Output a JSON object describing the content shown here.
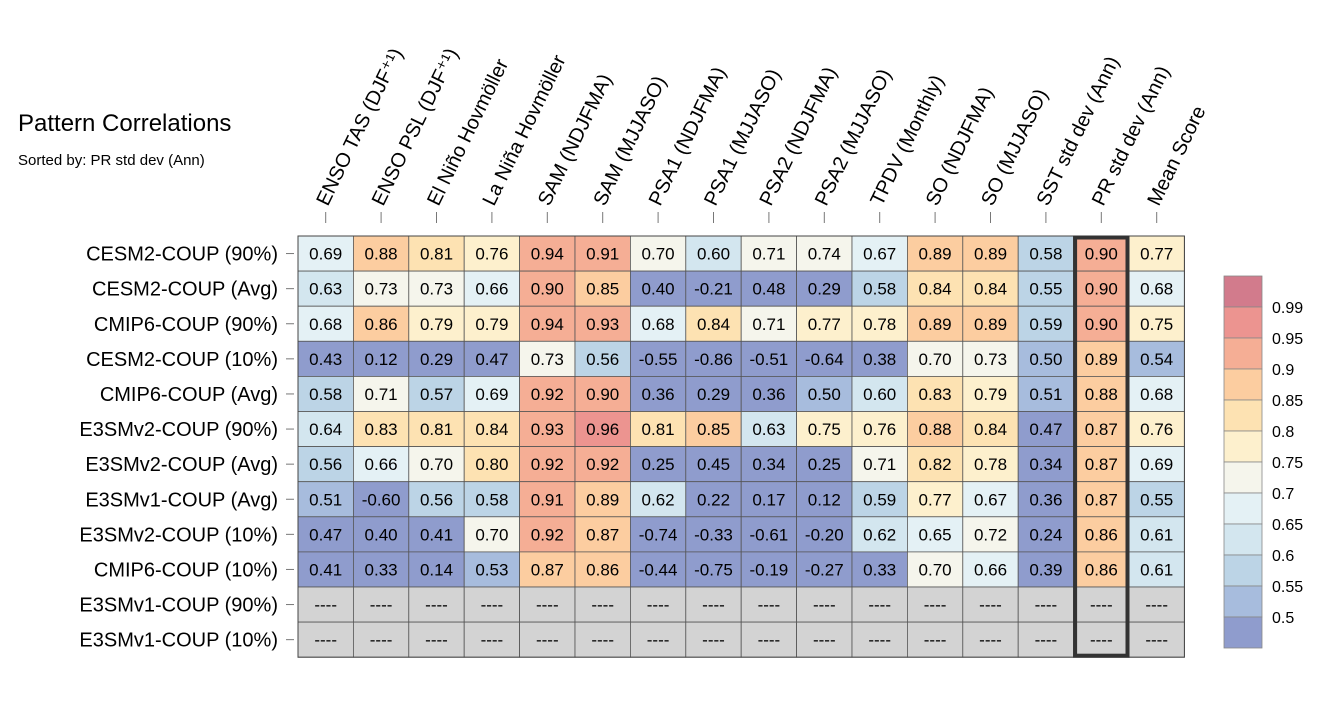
{
  "title": "Pattern Correlations",
  "subtitle": "Sorted by: PR std dev (Ann)",
  "colors": {
    "missing": "#d3d3d3",
    "bins": [
      "#8f9ccd",
      "#a7bcdd",
      "#bcd4e6",
      "#d3e6ef",
      "#e4f1f5",
      "#f5f5ec",
      "#fdf0cd",
      "#fde2b2",
      "#fccda0",
      "#f5ae95",
      "#ec9490",
      "#d27b8c"
    ],
    "highlight_border": "#333333"
  },
  "chart_data": {
    "type": "heatmap",
    "title": "Pattern Correlations",
    "subtitle": "Sorted by: PR std dev (Ann)",
    "columns": [
      "ENSO TAS (DJF⁺¹)",
      "ENSO PSL (DJF⁺¹)",
      "El Niño Hovmöller",
      "La Niña Hovmöller",
      "SAM (NDJFMA)",
      "SAM (MJJASO)",
      "PSA1 (NDJFMA)",
      "PSA1 (MJJASO)",
      "PSA2 (NDJFMA)",
      "PSA2 (MJJASO)",
      "TPDV (Monthly)",
      "SO (NDJFMA)",
      "SO (MJJASO)",
      "SST std dev (Ann)",
      "PR std dev (Ann)",
      "Mean Score"
    ],
    "rows": [
      "CESM2-COUP (90%)",
      "CESM2-COUP (Avg)",
      "CMIP6-COUP (90%)",
      "CESM2-COUP (10%)",
      "CMIP6-COUP (Avg)",
      "E3SMv2-COUP (90%)",
      "E3SMv2-COUP (Avg)",
      "E3SMv1-COUP (Avg)",
      "E3SMv2-COUP (10%)",
      "CMIP6-COUP (10%)",
      "E3SMv1-COUP (90%)",
      "E3SMv1-COUP (10%)"
    ],
    "values": [
      [
        "0.69",
        "0.88",
        "0.81",
        "0.76",
        "0.94",
        "0.91",
        "0.70",
        "0.60",
        "0.71",
        "0.74",
        "0.67",
        "0.89",
        "0.89",
        "0.58",
        "0.90",
        "0.77"
      ],
      [
        "0.63",
        "0.73",
        "0.73",
        "0.66",
        "0.90",
        "0.85",
        "0.40",
        "-0.21",
        "0.48",
        "0.29",
        "0.58",
        "0.84",
        "0.84",
        "0.55",
        "0.90",
        "0.68"
      ],
      [
        "0.68",
        "0.86",
        "0.79",
        "0.79",
        "0.94",
        "0.93",
        "0.68",
        "0.84",
        "0.71",
        "0.77",
        "0.78",
        "0.89",
        "0.89",
        "0.59",
        "0.90",
        "0.75"
      ],
      [
        "0.43",
        "0.12",
        "0.29",
        "0.47",
        "0.73",
        "0.56",
        "-0.55",
        "-0.86",
        "-0.51",
        "-0.64",
        "0.38",
        "0.70",
        "0.73",
        "0.50",
        "0.89",
        "0.54"
      ],
      [
        "0.58",
        "0.71",
        "0.57",
        "0.69",
        "0.92",
        "0.90",
        "0.36",
        "0.29",
        "0.36",
        "0.50",
        "0.60",
        "0.83",
        "0.79",
        "0.51",
        "0.88",
        "0.68"
      ],
      [
        "0.64",
        "0.83",
        "0.81",
        "0.84",
        "0.93",
        "0.96",
        "0.81",
        "0.85",
        "0.63",
        "0.75",
        "0.76",
        "0.88",
        "0.84",
        "0.47",
        "0.87",
        "0.76"
      ],
      [
        "0.56",
        "0.66",
        "0.70",
        "0.80",
        "0.92",
        "0.92",
        "0.25",
        "0.45",
        "0.34",
        "0.25",
        "0.71",
        "0.82",
        "0.78",
        "0.34",
        "0.87",
        "0.69"
      ],
      [
        "0.51",
        "-0.60",
        "0.56",
        "0.58",
        "0.91",
        "0.89",
        "0.62",
        "0.22",
        "0.17",
        "0.12",
        "0.59",
        "0.77",
        "0.67",
        "0.36",
        "0.87",
        "0.55"
      ],
      [
        "0.47",
        "0.40",
        "0.41",
        "0.70",
        "0.92",
        "0.87",
        "-0.74",
        "-0.33",
        "-0.61",
        "-0.20",
        "0.62",
        "0.65",
        "0.72",
        "0.24",
        "0.86",
        "0.61"
      ],
      [
        "0.41",
        "0.33",
        "0.14",
        "0.53",
        "0.87",
        "0.86",
        "-0.44",
        "-0.75",
        "-0.19",
        "-0.27",
        "0.33",
        "0.70",
        "0.66",
        "0.39",
        "0.86",
        "0.61"
      ],
      [
        "----",
        "----",
        "----",
        "----",
        "----",
        "----",
        "----",
        "----",
        "----",
        "----",
        "----",
        "----",
        "----",
        "----",
        "----",
        "----"
      ],
      [
        "----",
        "----",
        "----",
        "----",
        "----",
        "----",
        "----",
        "----",
        "----",
        "----",
        "----",
        "----",
        "----",
        "----",
        "----",
        "----"
      ]
    ],
    "highlight_column": "PR std dev (Ann)",
    "colorbar": {
      "labels": [
        "0.99",
        "0.95",
        "0.9",
        "0.85",
        "0.8",
        "0.75",
        "0.7",
        "0.65",
        "0.6",
        "0.55",
        "0.5"
      ],
      "thresholds": [
        0.5,
        0.55,
        0.6,
        0.65,
        0.7,
        0.75,
        0.8,
        0.85,
        0.9,
        0.95,
        0.99
      ]
    }
  }
}
